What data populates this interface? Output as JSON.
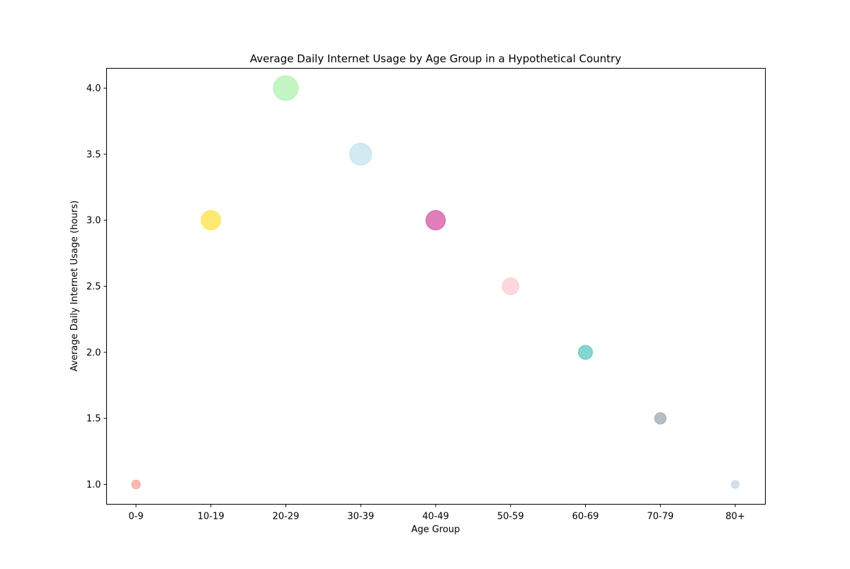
{
  "chart_data": {
    "type": "scatter",
    "title": "Average Daily Internet Usage by Age Group in a Hypothetical Country",
    "xlabel": "Age Group",
    "ylabel": "Average Daily Internet Usage (hours)",
    "categories": [
      "0-9",
      "10-19",
      "20-29",
      "30-39",
      "40-49",
      "50-59",
      "60-69",
      "70-79",
      "80+"
    ],
    "values": [
      1.0,
      3.0,
      4.0,
      3.5,
      3.0,
      2.5,
      2.0,
      1.5,
      1.0
    ],
    "point_colors": [
      "#FA8072",
      "#FFD700",
      "#90EE90",
      "#ADD8E6",
      "#C71585",
      "#FFB6C1",
      "#20B2AA",
      "#778899",
      "#B0C4DE"
    ],
    "ylim": [
      0.85,
      4.15
    ],
    "yticks": [
      "1.0",
      "1.5",
      "2.0",
      "2.5",
      "3.0",
      "3.5",
      "4.0"
    ],
    "grid": false,
    "legend": "none"
  }
}
